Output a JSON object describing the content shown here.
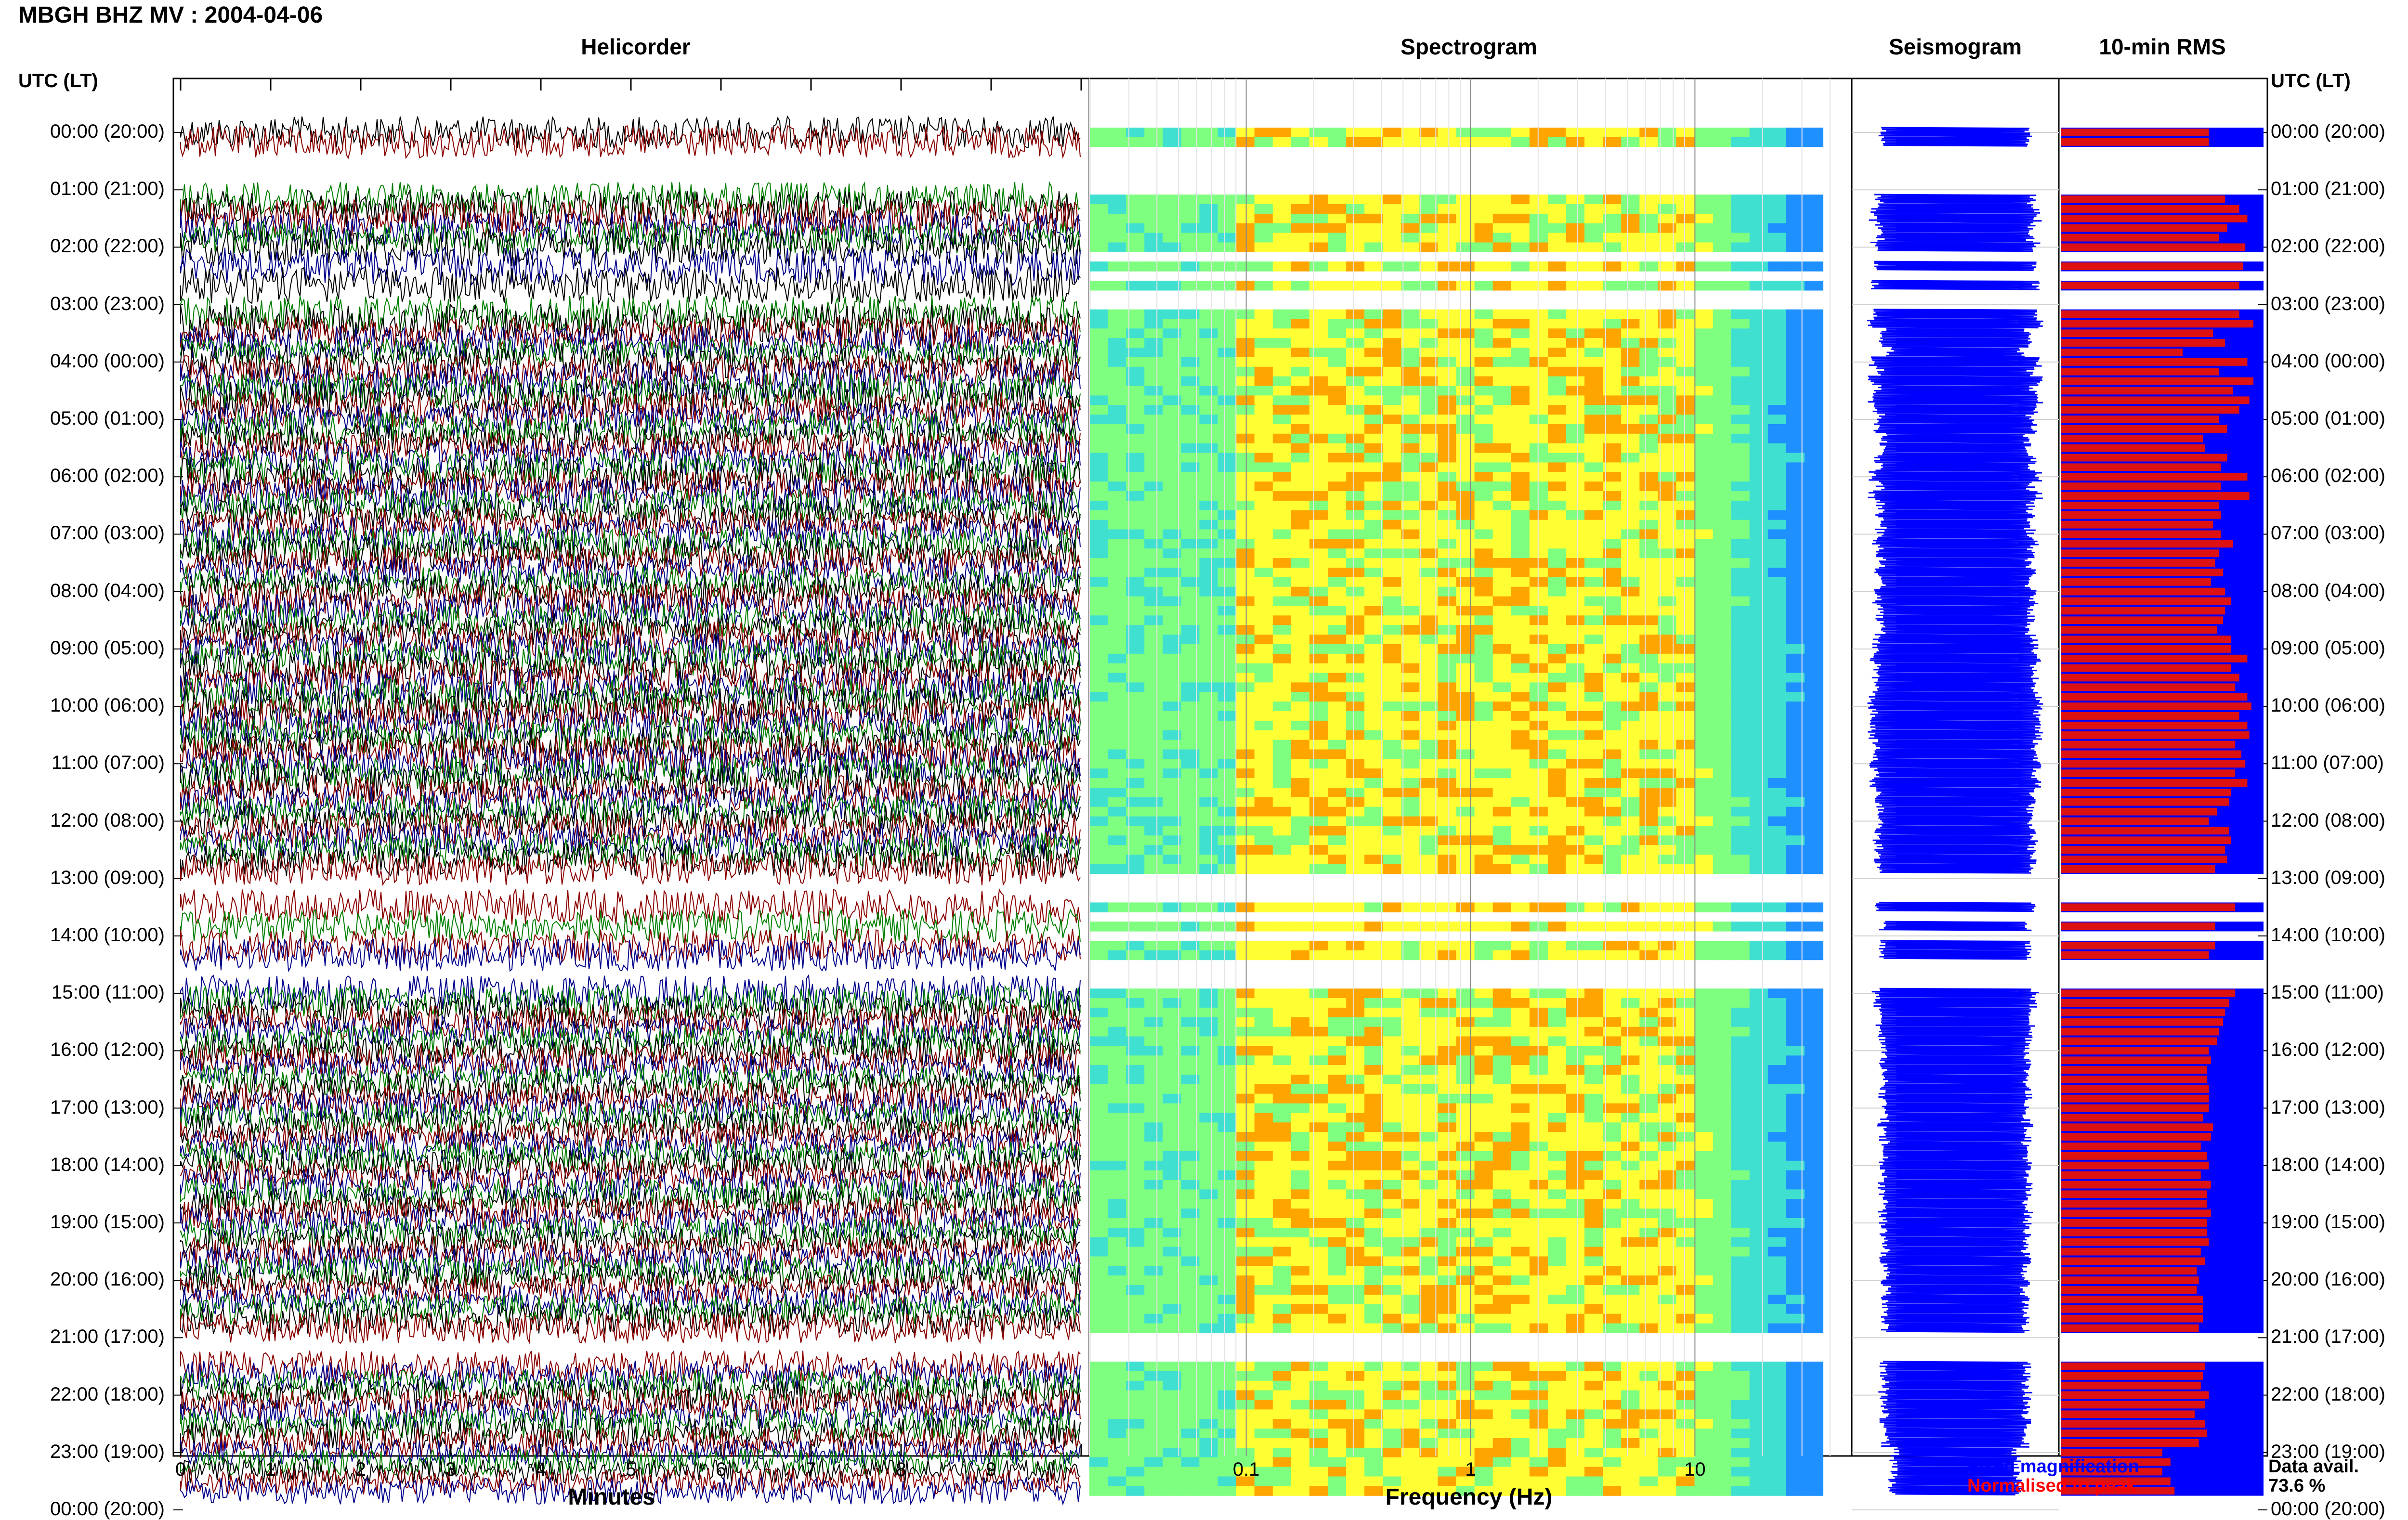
{
  "header": {
    "title": "MBGH BHZ MV : 2004-04-06"
  },
  "panels": {
    "helicorder": "Helicorder",
    "spectrogram": "Spectrogram",
    "seismogram": "Seismogram",
    "rms": "10-min RMS"
  },
  "axis": {
    "utc_left": "UTC (LT)",
    "utc_right": "UTC (LT)",
    "minutes_label": "Minutes",
    "frequency_label": "Frequency (Hz)"
  },
  "hours": [
    "00:00 (20:00)",
    "01:00 (21:00)",
    "02:00 (22:00)",
    "03:00 (23:00)",
    "04:00 (00:00)",
    "05:00 (01:00)",
    "06:00 (02:00)",
    "07:00 (03:00)",
    "08:00 (04:00)",
    "09:00 (05:00)",
    "10:00 (06:00)",
    "11:00 (07:00)",
    "12:00 (08:00)",
    "13:00 (09:00)",
    "14:00 (10:00)",
    "15:00 (11:00)",
    "16:00 (12:00)",
    "17:00 (13:00)",
    "18:00 (14:00)",
    "19:00 (15:00)",
    "20:00 (16:00)",
    "21:00 (17:00)",
    "22:00 (18:00)",
    "23:00 (19:00)",
    "00:00 (20:00)"
  ],
  "legend": {
    "fixed": "Fixed magnification",
    "normalised": "Normalised to peak",
    "avail_label": "Data avail.",
    "avail_value": "73.6 %"
  },
  "colors": {
    "helicorder_traces": [
      "#000000",
      "#8b0000",
      "#00008b",
      "#007f00"
    ],
    "fixed": "#0000ff",
    "normalised": "#ff0000",
    "rms_fixed": "#0000ff",
    "rms_normalised": "#dd1111"
  },
  "chart_data": {
    "type": "heatmap",
    "station": "MBGH BHZ MV",
    "date": "2004-04-06",
    "minutes_ticks": [
      "0",
      "1",
      "2",
      "3",
      "4",
      "5",
      "6",
      "7",
      "8",
      "9"
    ],
    "minutes_range": [
      0,
      10
    ],
    "frequency_ticks": [
      "0.1",
      "1",
      "10"
    ],
    "frequency_range_hz": [
      0.02,
      50
    ],
    "frequency_scale": "log",
    "time_range_utc": [
      "00:00",
      "24:00"
    ],
    "rms_fixed": [
      1,
      1,
      0,
      0,
      0,
      0,
      0,
      1,
      1,
      1,
      1,
      1,
      1,
      0,
      1,
      0,
      1,
      0,
      0,
      1,
      1,
      1,
      1,
      1,
      1,
      1,
      1,
      1,
      1,
      1,
      1,
      1,
      1,
      1,
      1,
      1,
      1,
      1,
      1,
      1,
      1,
      1,
      1,
      1,
      1,
      1,
      1,
      1,
      1,
      1,
      1,
      1,
      1,
      1,
      1,
      1,
      1,
      1,
      1,
      1,
      1,
      1,
      1,
      1,
      1,
      1,
      1,
      1,
      1,
      1,
      1,
      1,
      1,
      1,
      1,
      1,
      1,
      1,
      0,
      0,
      0,
      1,
      0,
      1,
      0,
      1,
      1,
      0,
      0,
      0,
      1,
      1,
      1,
      1,
      1,
      1,
      1,
      1,
      1,
      1,
      1,
      1,
      1,
      1,
      1,
      1,
      1,
      1,
      1,
      1,
      1,
      1,
      1,
      1,
      1,
      1,
      1,
      1,
      1,
      1,
      1,
      1,
      1,
      1,
      1,
      1,
      0,
      0,
      0,
      1,
      1,
      1,
      1,
      1,
      1,
      1,
      1,
      1,
      1,
      1,
      1,
      1,
      1,
      0,
      1,
      1,
      0,
      0,
      0,
      0
    ],
    "rms_normalised": [
      0.73,
      0.73,
      0,
      0,
      0,
      0,
      0,
      0.81,
      0.88,
      0.92,
      0.82,
      0.78,
      0.91,
      0,
      0.9,
      0,
      0.88,
      0,
      0,
      0.88,
      0.95,
      0.75,
      0.81,
      0.6,
      0.92,
      0.78,
      0.95,
      0.85,
      0.93,
      0.88,
      0.78,
      0.82,
      0.7,
      0.71,
      0.82,
      0.79,
      0.92,
      0.79,
      0.93,
      0.78,
      0.79,
      0.75,
      0.79,
      0.85,
      0.78,
      0.76,
      0.8,
      0.74,
      0.81,
      0.84,
      0.81,
      0.8,
      0.77,
      0.84,
      0.84,
      0.92,
      0.84,
      0.88,
      0.86,
      0.92,
      0.94,
      0.88,
      0.92,
      0.93,
      0.86,
      0.89,
      0.91,
      0.86,
      0.92,
      0.84,
      0.83,
      0.77,
      0.73,
      0.83,
      0.84,
      0.81,
      0.82,
      0.76,
      0,
      0,
      0,
      0.86,
      0,
      0.76,
      0,
      0.76,
      0.73,
      0,
      0,
      0,
      0.86,
      0.83,
      0.81,
      0.8,
      0.78,
      0.77,
      0.73,
      0.74,
      0.72,
      0.72,
      0.73,
      0.73,
      0.73,
      0.7,
      0.75,
      0.74,
      0.69,
      0.72,
      0.73,
      0.69,
      0.74,
      0.72,
      0.72,
      0.74,
      0.72,
      0.72,
      0.73,
      0.69,
      0.71,
      0.67,
      0.68,
      0.67,
      0.7,
      0.7,
      0.7,
      0.68,
      0,
      0,
      0,
      0.71,
      0.7,
      0.69,
      0.73,
      0.71,
      0.66,
      0.71,
      0.72,
      0.68,
      0.5,
      0.54,
      0.5,
      0.54,
      0.56,
      0,
      0.51,
      0.51,
      0,
      0,
      0,
      0
    ]
  }
}
